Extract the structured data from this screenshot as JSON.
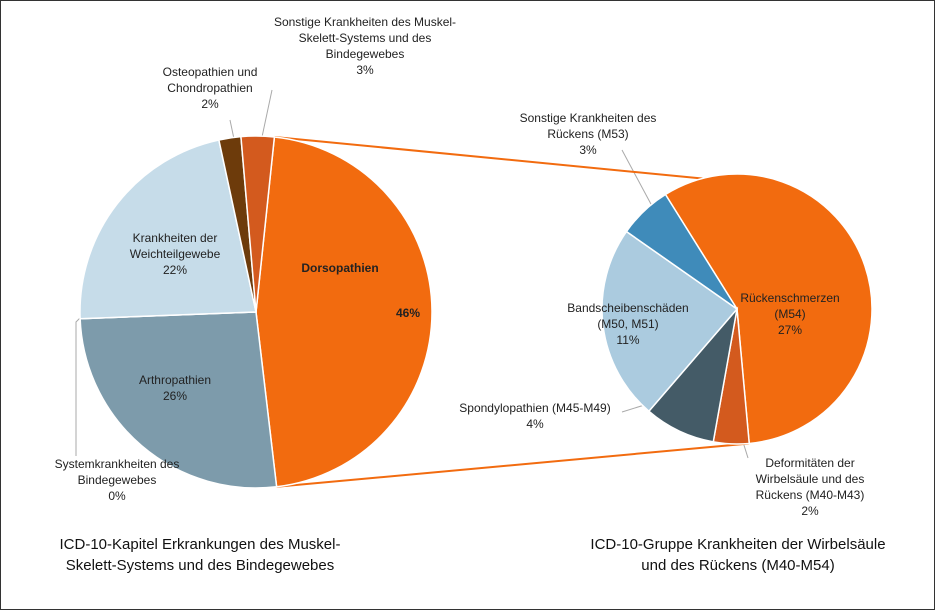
{
  "chart_data": [
    {
      "type": "pie",
      "title": "ICD-10-Kapitel Erkrankungen des Muskel-Skelett-Systems und des Bindegewebes",
      "categories": [
        "Dorsopathien",
        "Arthropathien",
        "Systemkrankheiten des Bindegewebes",
        "Krankheiten der Weichteilgewebe",
        "Osteopathien und Chondropathien",
        "Sonstige Krankheiten des Muskel-Skelett-Systems und des Bindegewebes"
      ],
      "values": [
        46,
        26,
        0,
        22,
        2,
        3
      ],
      "value_labels": [
        "46%",
        "26%",
        "0%",
        "22%",
        "2%",
        "3%"
      ],
      "colors": [
        "#f26b0f",
        "#7d9bab",
        "#e8833a",
        "#c6dce9",
        "#6d3b0b",
        "#d35a1e"
      ]
    },
    {
      "type": "pie",
      "title": "ICD-10-Gruppe Krankheiten der Wirbelsäule und des Rückens (M40-M54)",
      "categories": [
        "Rückenschmerzen (M54)",
        "Deformitäten der Wirbelsäule und des Rückens (M40-M43)",
        "Spondylopathien (M45-M49)",
        "Bandscheibenschäden (M50, M51)",
        "Sonstige Krankheiten des Rückens (M53)"
      ],
      "values": [
        27,
        2,
        4,
        11,
        3
      ],
      "value_labels": [
        "27%",
        "2%",
        "4%",
        "11%",
        "3%"
      ],
      "colors": [
        "#f26b0f",
        "#d35a1e",
        "#445b67",
        "#abcbdf",
        "#3f8bba"
      ]
    }
  ]
}
